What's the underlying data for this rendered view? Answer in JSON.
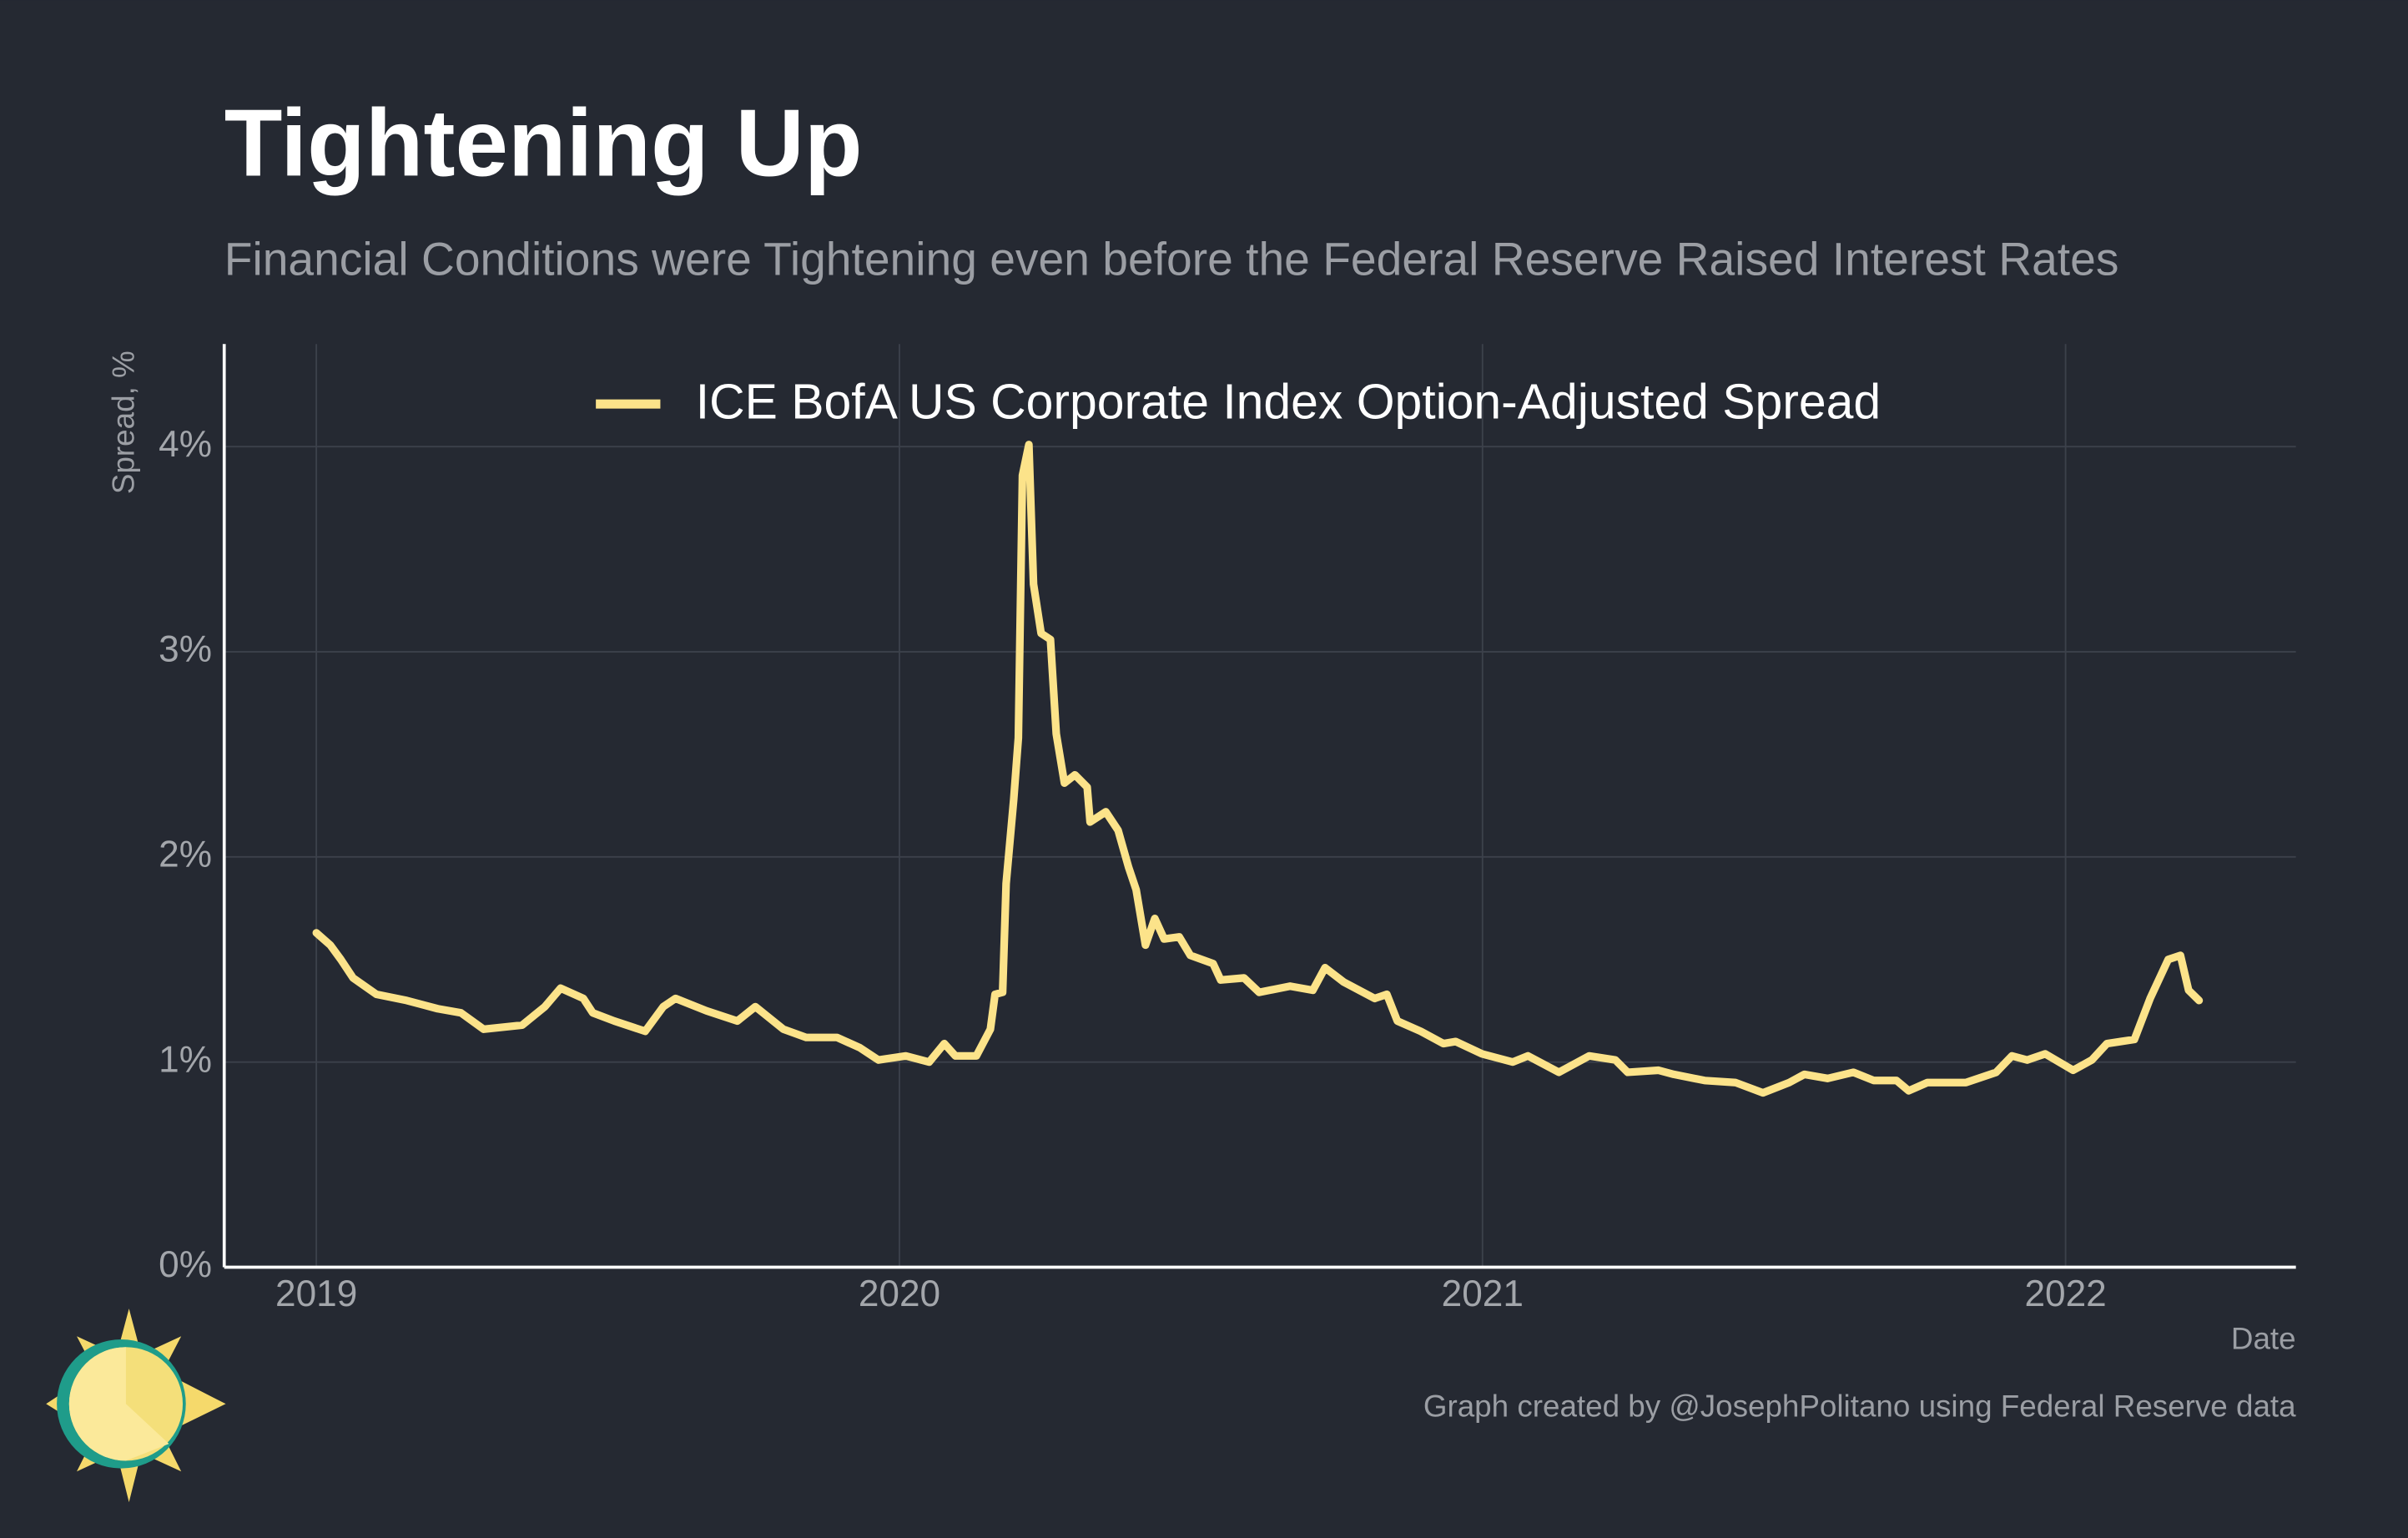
{
  "chart_data": {
    "type": "line",
    "title": "Tightening Up",
    "subtitle": "Financial Conditions were Tightening even before the Federal Reserve Raised Interest Rates",
    "x_label": "Date",
    "y_label": "Spread, %",
    "caption": "Graph created by @JosephPolitano using Federal Reserve data",
    "legend_position": "top",
    "grid": true,
    "xlim": [
      2018.842,
      2022.395
    ],
    "ylim": [
      0,
      4.5
    ],
    "xticks": [
      2019,
      2020,
      2021,
      2022
    ],
    "yticks": [
      {
        "value": 0,
        "label": "0%"
      },
      {
        "value": 1,
        "label": "1%"
      },
      {
        "value": 2,
        "label": "2%"
      },
      {
        "value": 3,
        "label": "3%"
      },
      {
        "value": 4,
        "label": "4%"
      }
    ],
    "x": [
      2019.0,
      2019.024,
      2019.042,
      2019.063,
      2019.103,
      2019.155,
      2019.208,
      2019.248,
      2019.287,
      2019.353,
      2019.392,
      2019.419,
      2019.458,
      2019.474,
      2019.511,
      2019.564,
      2019.595,
      2019.616,
      2019.669,
      2019.722,
      2019.753,
      2019.801,
      2019.84,
      2019.893,
      2019.932,
      2019.964,
      2020.011,
      2020.051,
      2020.077,
      2020.096,
      2020.132,
      2020.156,
      2020.164,
      2020.177,
      2020.183,
      2020.196,
      2020.204,
      2020.211,
      2020.222,
      2020.23,
      2020.243,
      2020.259,
      2020.269,
      2020.283,
      2020.301,
      2020.322,
      2020.327,
      2020.354,
      2020.375,
      2020.393,
      2020.406,
      2020.422,
      2020.438,
      2020.454,
      2020.48,
      2020.499,
      2020.538,
      2020.551,
      2020.591,
      2020.617,
      2020.67,
      2020.709,
      2020.73,
      2020.762,
      2020.815,
      2020.836,
      2020.854,
      2020.894,
      2020.933,
      2020.954,
      2020.999,
      2021.052,
      2021.078,
      2021.131,
      2021.183,
      2021.228,
      2021.249,
      2021.302,
      2021.328,
      2021.381,
      2021.434,
      2021.481,
      2021.526,
      2021.552,
      2021.592,
      2021.636,
      2021.671,
      2021.71,
      2021.731,
      2021.763,
      2021.829,
      2021.881,
      2021.908,
      2021.934,
      2021.965,
      2022.013,
      2022.045,
      2022.071,
      2022.118,
      2022.145,
      2022.176,
      2022.197,
      2022.211,
      2022.229
    ],
    "series": [
      {
        "name": "ICE BofA US Corporate Index Option-Adjusted Spread",
        "color": "#fce38a",
        "values": [
          1.63,
          1.57,
          1.5,
          1.41,
          1.33,
          1.3,
          1.26,
          1.24,
          1.16,
          1.18,
          1.27,
          1.36,
          1.31,
          1.24,
          1.2,
          1.15,
          1.27,
          1.31,
          1.25,
          1.2,
          1.27,
          1.16,
          1.12,
          1.12,
          1.07,
          1.01,
          1.03,
          1.0,
          1.09,
          1.03,
          1.03,
          1.16,
          1.33,
          1.34,
          1.87,
          2.28,
          2.58,
          3.86,
          4.01,
          3.33,
          3.09,
          3.06,
          2.6,
          2.36,
          2.4,
          2.34,
          2.17,
          2.22,
          2.13,
          1.95,
          1.84,
          1.57,
          1.7,
          1.6,
          1.61,
          1.52,
          1.48,
          1.4,
          1.41,
          1.34,
          1.37,
          1.35,
          1.46,
          1.39,
          1.31,
          1.33,
          1.2,
          1.15,
          1.09,
          1.1,
          1.04,
          1.0,
          1.03,
          0.95,
          1.03,
          1.01,
          0.95,
          0.96,
          0.94,
          0.91,
          0.9,
          0.85,
          0.9,
          0.94,
          0.92,
          0.95,
          0.91,
          0.91,
          0.86,
          0.9,
          0.9,
          0.95,
          1.03,
          1.01,
          1.04,
          0.96,
          1.01,
          1.09,
          1.11,
          1.31,
          1.5,
          1.52,
          1.35,
          1.3
        ]
      }
    ]
  }
}
